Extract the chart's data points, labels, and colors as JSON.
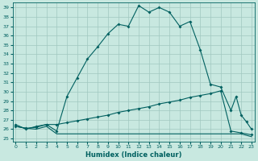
{
  "xlabel": "Humidex (Indice chaleur)",
  "bg_color": "#c8e8e0",
  "grid_color": "#a0c8c0",
  "line_color": "#006060",
  "xlim": [
    -0.3,
    23.3
  ],
  "ylim": [
    24.7,
    39.5
  ],
  "x_ticks": [
    0,
    1,
    2,
    3,
    4,
    5,
    6,
    7,
    8,
    9,
    10,
    11,
    12,
    13,
    14,
    15,
    16,
    17,
    18,
    19,
    20,
    21,
    22,
    23
  ],
  "y_ticks": [
    25,
    26,
    27,
    28,
    29,
    30,
    31,
    32,
    33,
    34,
    35,
    36,
    37,
    38,
    39
  ],
  "curve_main_x": [
    0,
    1,
    2,
    3,
    4,
    5,
    6,
    7,
    8,
    9,
    10,
    11,
    12,
    13,
    14,
    15,
    16,
    17,
    18,
    19,
    20,
    21,
    21.5,
    22,
    22.5,
    23
  ],
  "curve_main_y": [
    26.5,
    26.0,
    26.3,
    26.5,
    25.8,
    29.5,
    31.5,
    33.5,
    34.8,
    36.2,
    37.2,
    37.0,
    39.2,
    38.5,
    39.0,
    38.5,
    37.0,
    37.5,
    34.5,
    30.8,
    30.5,
    28.0,
    29.5,
    27.5,
    26.8,
    26.0
  ],
  "curve_diag_x": [
    0,
    1,
    2,
    3,
    4,
    5,
    6,
    7,
    8,
    9,
    10,
    11,
    12,
    13,
    14,
    15,
    16,
    17,
    18,
    19,
    20,
    21,
    22,
    23
  ],
  "curve_diag_y": [
    26.3,
    26.1,
    26.2,
    26.5,
    26.5,
    26.7,
    26.9,
    27.1,
    27.3,
    27.5,
    27.8,
    28.0,
    28.2,
    28.4,
    28.7,
    28.9,
    29.1,
    29.4,
    29.6,
    29.8,
    30.1,
    25.8,
    25.6,
    25.4
  ],
  "curve_flat_x": [
    0,
    1,
    2,
    3,
    4,
    5,
    6,
    7,
    8,
    9,
    10,
    11,
    12,
    13,
    14,
    15,
    16,
    17,
    18,
    19,
    20,
    21,
    22,
    23
  ],
  "curve_flat_y": [
    26.3,
    26.1,
    26.0,
    26.3,
    25.5,
    25.5,
    25.5,
    25.5,
    25.5,
    25.5,
    25.5,
    25.5,
    25.5,
    25.5,
    25.5,
    25.5,
    25.5,
    25.5,
    25.5,
    25.5,
    25.5,
    25.5,
    25.5,
    25.2
  ]
}
